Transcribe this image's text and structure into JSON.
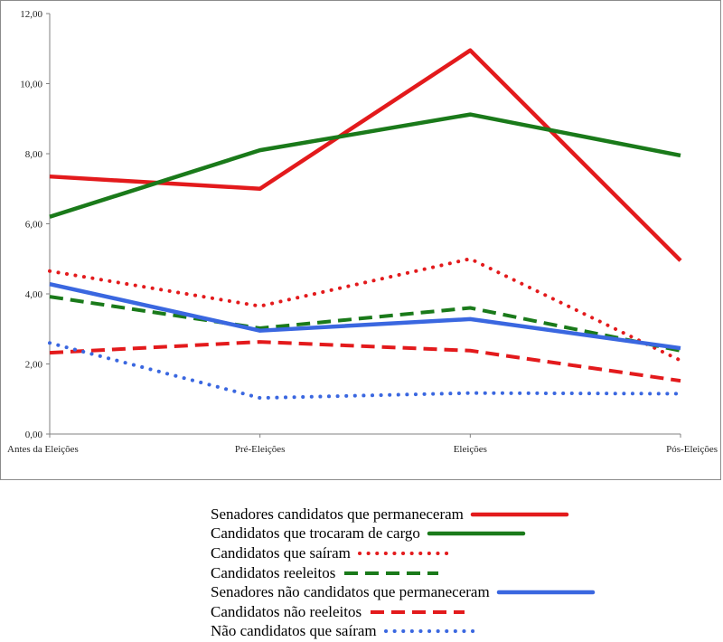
{
  "chart_data": {
    "type": "line",
    "title": "",
    "xlabel": "",
    "ylabel": "",
    "categories": [
      "Antes da Eleições",
      "Pré-Eleições",
      "Eleições",
      "Pós-Eleições"
    ],
    "ylim": [
      0,
      12
    ],
    "yticks": [
      0,
      2,
      4,
      6,
      8,
      10,
      12
    ],
    "ytick_labels": [
      "0,00",
      "2,00",
      "4,00",
      "6,00",
      "8,00",
      "10,00",
      "12,00"
    ],
    "grid": false,
    "legend_position": "bottom",
    "series": [
      {
        "name": "Senadores candidatos que permaneceram",
        "values": [
          7.35,
          7.0,
          10.95,
          4.95
        ],
        "color": "#e31a1c",
        "style": "solid"
      },
      {
        "name": "Candidatos que trocaram de cargo",
        "values": [
          6.2,
          8.1,
          9.12,
          7.95
        ],
        "color": "#1a7a1a",
        "style": "solid"
      },
      {
        "name": "Candidatos que saíram",
        "values": [
          4.65,
          3.65,
          5.0,
          2.1
        ],
        "color": "#e31a1c",
        "style": "dotted"
      },
      {
        "name": "Candidatos reeleitos",
        "values": [
          3.92,
          3.02,
          3.6,
          2.38
        ],
        "color": "#1a7a1a",
        "style": "dashed"
      },
      {
        "name": "Senadores não candidatos que permaneceram",
        "values": [
          4.28,
          2.95,
          3.28,
          2.45
        ],
        "color": "#3a67e0",
        "style": "solid"
      },
      {
        "name": "Candidatos não reeleitos",
        "values": [
          2.32,
          2.63,
          2.38,
          1.52
        ],
        "color": "#e31a1c",
        "style": "dashed"
      },
      {
        "name": "Não candidatos que saíram",
        "values": [
          2.6,
          1.03,
          1.17,
          1.15
        ],
        "color": "#3a67e0",
        "style": "dotted"
      }
    ]
  }
}
